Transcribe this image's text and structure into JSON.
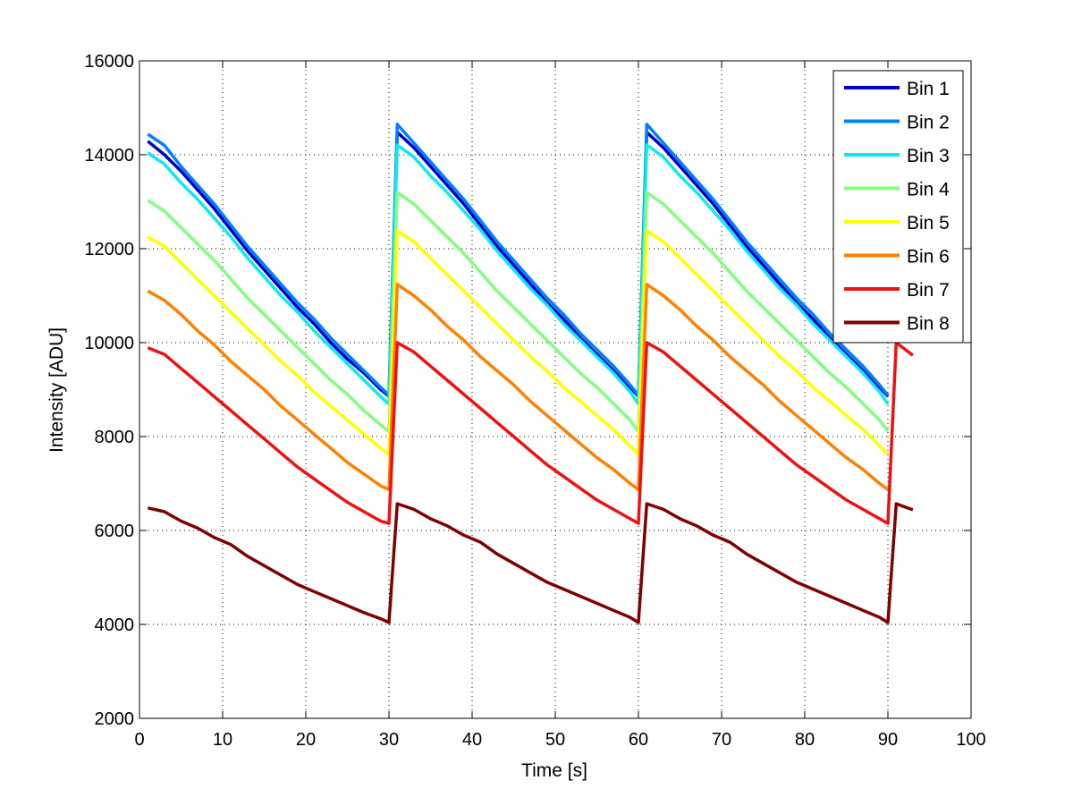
{
  "chart_data": {
    "type": "line",
    "title": "",
    "xlabel": "Time [s]",
    "ylabel": "Intensity [ADU]",
    "xlim": [
      0,
      100
    ],
    "ylim": [
      2000,
      16000
    ],
    "xticks": [
      "0",
      "10",
      "20",
      "30",
      "40",
      "50",
      "60",
      "70",
      "80",
      "90",
      "100"
    ],
    "yticks": [
      "2000",
      "4000",
      "6000",
      "8000",
      "10000",
      "12000",
      "14000",
      "16000"
    ],
    "grid": true,
    "legend_position": "top-right",
    "x": [
      1,
      3,
      5,
      7,
      9,
      11,
      13,
      15,
      17,
      19,
      21,
      23,
      25,
      27,
      29,
      30,
      31,
      33,
      35,
      37,
      39,
      41,
      43,
      45,
      47,
      49,
      51,
      53,
      55,
      57,
      59,
      60,
      61,
      63,
      65,
      67,
      69,
      71,
      73,
      75,
      77,
      79,
      81,
      83,
      85,
      87,
      89,
      90,
      91,
      93
    ],
    "series": [
      {
        "name": "Bin 1",
        "color": "#0000c8",
        "values": [
          14290,
          14000,
          13650,
          13250,
          12850,
          12400,
          11950,
          11550,
          11150,
          10750,
          10400,
          10000,
          9650,
          9350,
          9000,
          8860,
          14480,
          14150,
          13750,
          13350,
          12950,
          12500,
          12050,
          11650,
          11250,
          10850,
          10500,
          10100,
          9750,
          9400,
          9050,
          8860,
          14480,
          14150,
          13750,
          13350,
          12950,
          12500,
          12050,
          11650,
          11250,
          10850,
          10500,
          10100,
          9750,
          9400,
          9050,
          8860,
          null,
          null
        ]
      },
      {
        "name": "Bin 2",
        "color": "#0080ff",
        "values": [
          14440,
          14200,
          13750,
          13350,
          12950,
          12500,
          12050,
          11650,
          11250,
          10850,
          10500,
          10100,
          9750,
          9400,
          9050,
          8880,
          14650,
          14250,
          13850,
          13450,
          13050,
          12600,
          12150,
          11750,
          11350,
          10950,
          10600,
          10200,
          9850,
          9500,
          9100,
          8880,
          14650,
          14250,
          13850,
          13450,
          13050,
          12600,
          12150,
          11750,
          11350,
          10950,
          10600,
          10200,
          9850,
          9500,
          9100,
          8880,
          null,
          null
        ]
      },
      {
        "name": "Bin 3",
        "color": "#10e8f0",
        "values": [
          14040,
          13800,
          13400,
          13050,
          12650,
          12250,
          11800,
          11400,
          11000,
          10650,
          10250,
          9900,
          9550,
          9200,
          8850,
          8690,
          14210,
          13950,
          13550,
          13200,
          12800,
          12400,
          11950,
          11550,
          11150,
          10800,
          10400,
          10050,
          9700,
          9350,
          8950,
          8690,
          14210,
          13950,
          13550,
          13200,
          12800,
          12400,
          11950,
          11550,
          11150,
          10800,
          10400,
          10050,
          9700,
          9350,
          8950,
          8690,
          null,
          null
        ]
      },
      {
        "name": "Bin 4",
        "color": "#80ff80",
        "values": [
          13030,
          12800,
          12450,
          12100,
          11750,
          11350,
          10950,
          10600,
          10250,
          9900,
          9550,
          9200,
          8900,
          8550,
          8250,
          8110,
          13200,
          12950,
          12600,
          12250,
          11900,
          11500,
          11100,
          10750,
          10400,
          10050,
          9700,
          9350,
          9050,
          8700,
          8350,
          8110,
          13200,
          12950,
          12600,
          12250,
          11900,
          11500,
          11100,
          10750,
          10400,
          10050,
          9700,
          9350,
          9050,
          8700,
          8350,
          8110,
          null,
          null
        ]
      },
      {
        "name": "Bin 5",
        "color": "#ffff00",
        "values": [
          12250,
          12050,
          11700,
          11350,
          11000,
          10650,
          10300,
          9950,
          9600,
          9300,
          8950,
          8650,
          8350,
          8050,
          7750,
          7620,
          12380,
          12150,
          11800,
          11450,
          11100,
          10750,
          10400,
          10050,
          9700,
          9400,
          9050,
          8750,
          8450,
          8150,
          7800,
          7620,
          12380,
          12150,
          11800,
          11450,
          11100,
          10750,
          10400,
          10050,
          9700,
          9400,
          9050,
          8750,
          8450,
          8150,
          7800,
          7620,
          null,
          null
        ]
      },
      {
        "name": "Bin 6",
        "color": "#ff8000",
        "values": [
          11100,
          10900,
          10600,
          10250,
          9950,
          9600,
          9300,
          9000,
          8650,
          8350,
          8050,
          7750,
          7450,
          7200,
          6950,
          6870,
          11240,
          11000,
          10700,
          10350,
          10050,
          9700,
          9400,
          9100,
          8750,
          8450,
          8150,
          7850,
          7550,
          7300,
          7000,
          6870,
          11240,
          11000,
          10700,
          10350,
          10050,
          9700,
          9400,
          9100,
          8750,
          8450,
          8150,
          7850,
          7550,
          7300,
          7000,
          6870,
          null,
          null
        ]
      },
      {
        "name": "Bin 7",
        "color": "#f01010",
        "values": [
          9890,
          9750,
          9450,
          9150,
          8850,
          8550,
          8250,
          7950,
          7650,
          7350,
          7100,
          6850,
          6600,
          6400,
          6200,
          6150,
          10000,
          9800,
          9500,
          9200,
          8900,
          8600,
          8300,
          8000,
          7700,
          7400,
          7150,
          6900,
          6650,
          6450,
          6250,
          6150,
          10000,
          9800,
          9500,
          9200,
          8900,
          8600,
          8300,
          8000,
          7700,
          7400,
          7150,
          6900,
          6650,
          6450,
          6250,
          6150,
          10000,
          9730
        ]
      },
      {
        "name": "Bin 8",
        "color": "#800000",
        "values": [
          6480,
          6400,
          6200,
          6050,
          5850,
          5700,
          5450,
          5250,
          5050,
          4850,
          4700,
          4550,
          4400,
          4250,
          4120,
          4040,
          6570,
          6450,
          6250,
          6100,
          5900,
          5750,
          5500,
          5300,
          5100,
          4900,
          4750,
          4600,
          4450,
          4300,
          4150,
          4040,
          6570,
          6450,
          6250,
          6100,
          5900,
          5750,
          5500,
          5300,
          5100,
          4900,
          4750,
          4600,
          4450,
          4300,
          4150,
          4040,
          6570,
          6440
        ]
      }
    ]
  }
}
